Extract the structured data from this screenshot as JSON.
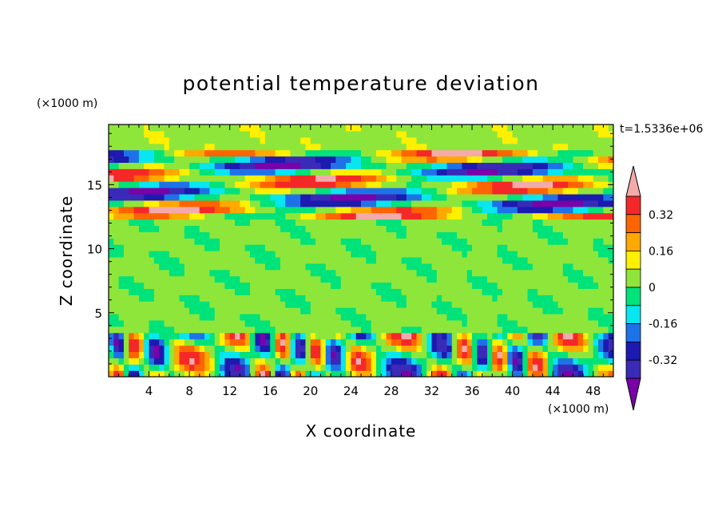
{
  "chart_data": {
    "type": "heatmap",
    "title": "potential temperature deviation",
    "xlabel": "X coordinate",
    "ylabel": "Z coordinate",
    "x_unit": "(×1000 m)",
    "y_unit": "(×1000 m)",
    "time_label": "t=1.5336e+06",
    "xlim": [
      0,
      50
    ],
    "ylim": [
      0,
      19.7
    ],
    "x_ticks": [
      "4",
      "8",
      "12",
      "16",
      "20",
      "24",
      "28",
      "32",
      "36",
      "40",
      "44",
      "48"
    ],
    "y_ticks": [
      "5",
      "10",
      "15"
    ],
    "colorbar": {
      "tick_labels": [
        "0.32",
        "0.16",
        "0",
        "-0.16",
        "-0.32"
      ],
      "tick_values": [
        0.32,
        0.16,
        0,
        -0.16,
        -0.32
      ],
      "levels": [
        -0.4,
        -0.32,
        -0.24,
        -0.16,
        -0.08,
        0,
        0.08,
        0.16,
        0.24,
        0.32,
        0.4
      ],
      "colors": [
        "#7a00a8",
        "#3a2ab8",
        "#1c1ab0",
        "#1e72e8",
        "#08e6f0",
        "#00e27a",
        "#8ee63a",
        "#fff000",
        "#ffa800",
        "#ff6400",
        "#f52828",
        "#f5aaaa"
      ]
    },
    "bands": [
      {
        "z": [
          0,
          3.6
        ],
        "pattern": "plumes"
      },
      {
        "z": [
          3.6,
          12.2
        ],
        "value": 0.02
      },
      {
        "z": [
          12.2,
          17.5
        ],
        "pattern": "layers"
      },
      {
        "z": [
          17.5,
          19.7
        ],
        "value": 0.05
      }
    ]
  }
}
